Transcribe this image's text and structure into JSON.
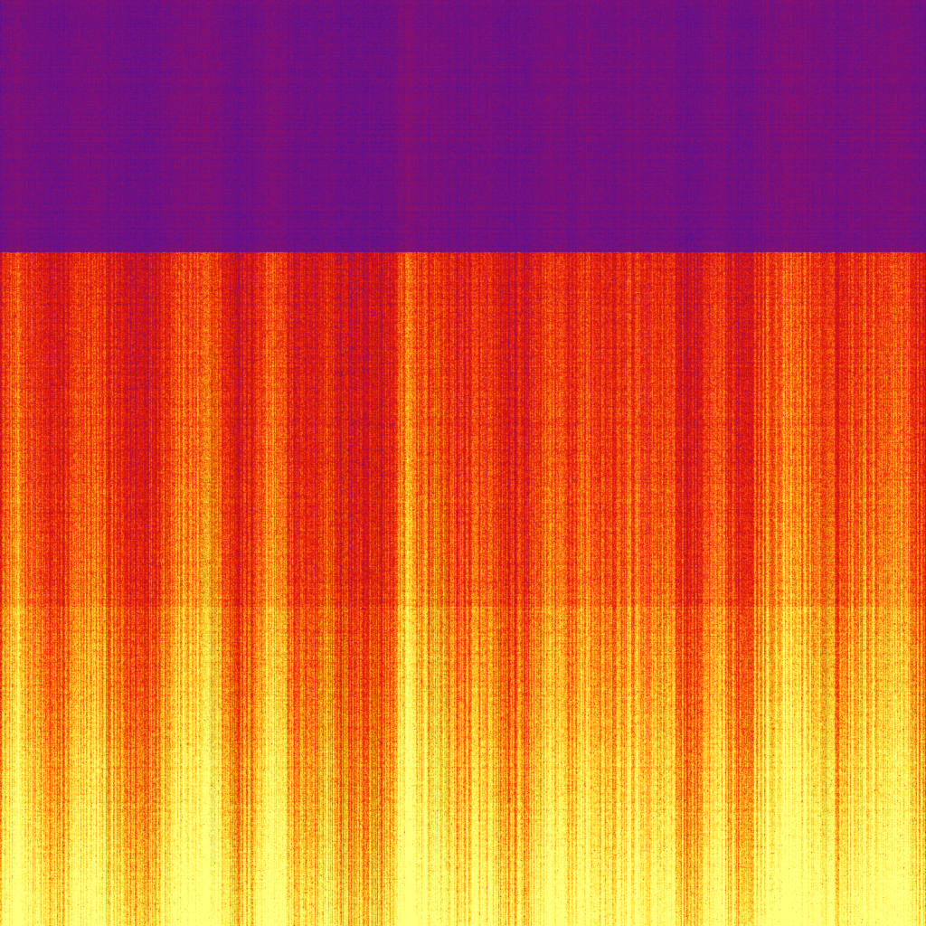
{
  "colormap": {
    "stops": [
      "#2a0860",
      "#5c1090",
      "#8a1070",
      "#d40c0c",
      "#f03010",
      "#ff8a10",
      "#ffe030",
      "#ffff80"
    ]
  }
}
